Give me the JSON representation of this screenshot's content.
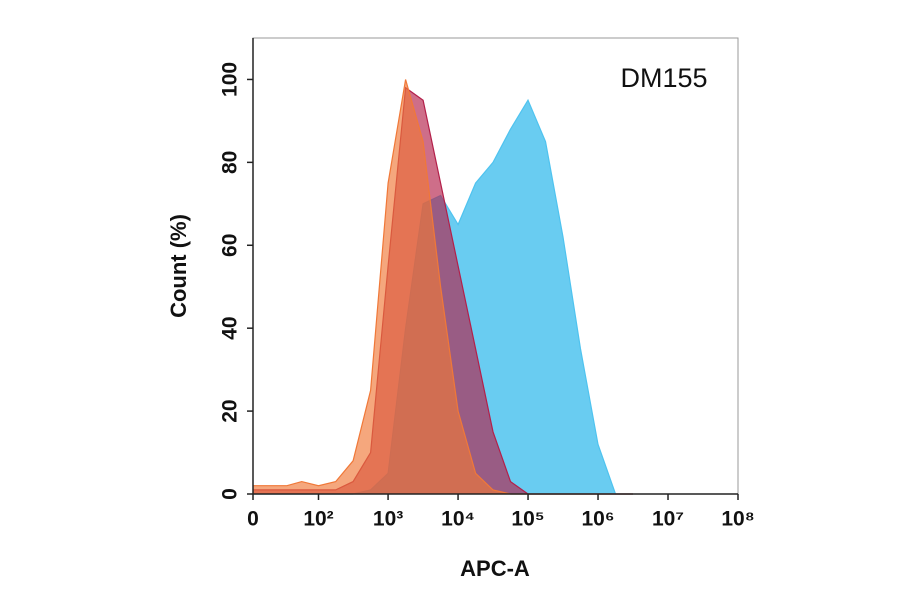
{
  "chart_data": {
    "type": "area",
    "annotation": "DM155",
    "x_label": "APC-A",
    "y_label": "Count  (%)",
    "x": [
      0,
      32,
      56,
      100,
      178,
      316,
      562,
      1000,
      1778,
      3162,
      5623,
      10000,
      17783,
      31623,
      56234,
      100000,
      177828,
      316228,
      562341,
      1000000,
      1778279,
      3162278
    ],
    "series": [
      {
        "color": "#4fc3ef",
        "values": [
          0,
          0,
          0,
          0,
          0,
          0,
          1,
          5,
          40,
          70,
          72,
          65,
          75,
          80,
          88,
          95,
          85,
          62,
          35,
          12,
          0,
          0
        ]
      },
      {
        "color": "#b3204a",
        "values": [
          1,
          1,
          1,
          1,
          1,
          3,
          10,
          55,
          98,
          95,
          75,
          55,
          35,
          15,
          3,
          0,
          0,
          0,
          0,
          0,
          0,
          0
        ]
      },
      {
        "color": "#f07838",
        "values": [
          2,
          2,
          3,
          2,
          3,
          8,
          25,
          75,
          100,
          85,
          50,
          20,
          5,
          1,
          0,
          0,
          0,
          0,
          0,
          0,
          0,
          0
        ]
      }
    ],
    "xscale": "biexponential",
    "xlim": [
      0,
      100000000
    ],
    "xticks": [
      0,
      {
        "value": 100,
        "label": "10²"
      },
      {
        "value": 1000,
        "label": "10³"
      },
      {
        "value": 10000,
        "label": "10⁴"
      },
      {
        "value": 100000,
        "label": "10⁵"
      },
      {
        "value": 1000000,
        "label": "10⁶"
      },
      {
        "value": 10000000,
        "label": "10⁷"
      },
      {
        "value": 100000000,
        "label": "10⁸"
      }
    ],
    "ylim": [
      0,
      110
    ],
    "yticks": [
      0,
      20,
      40,
      60,
      80,
      100
    ]
  }
}
